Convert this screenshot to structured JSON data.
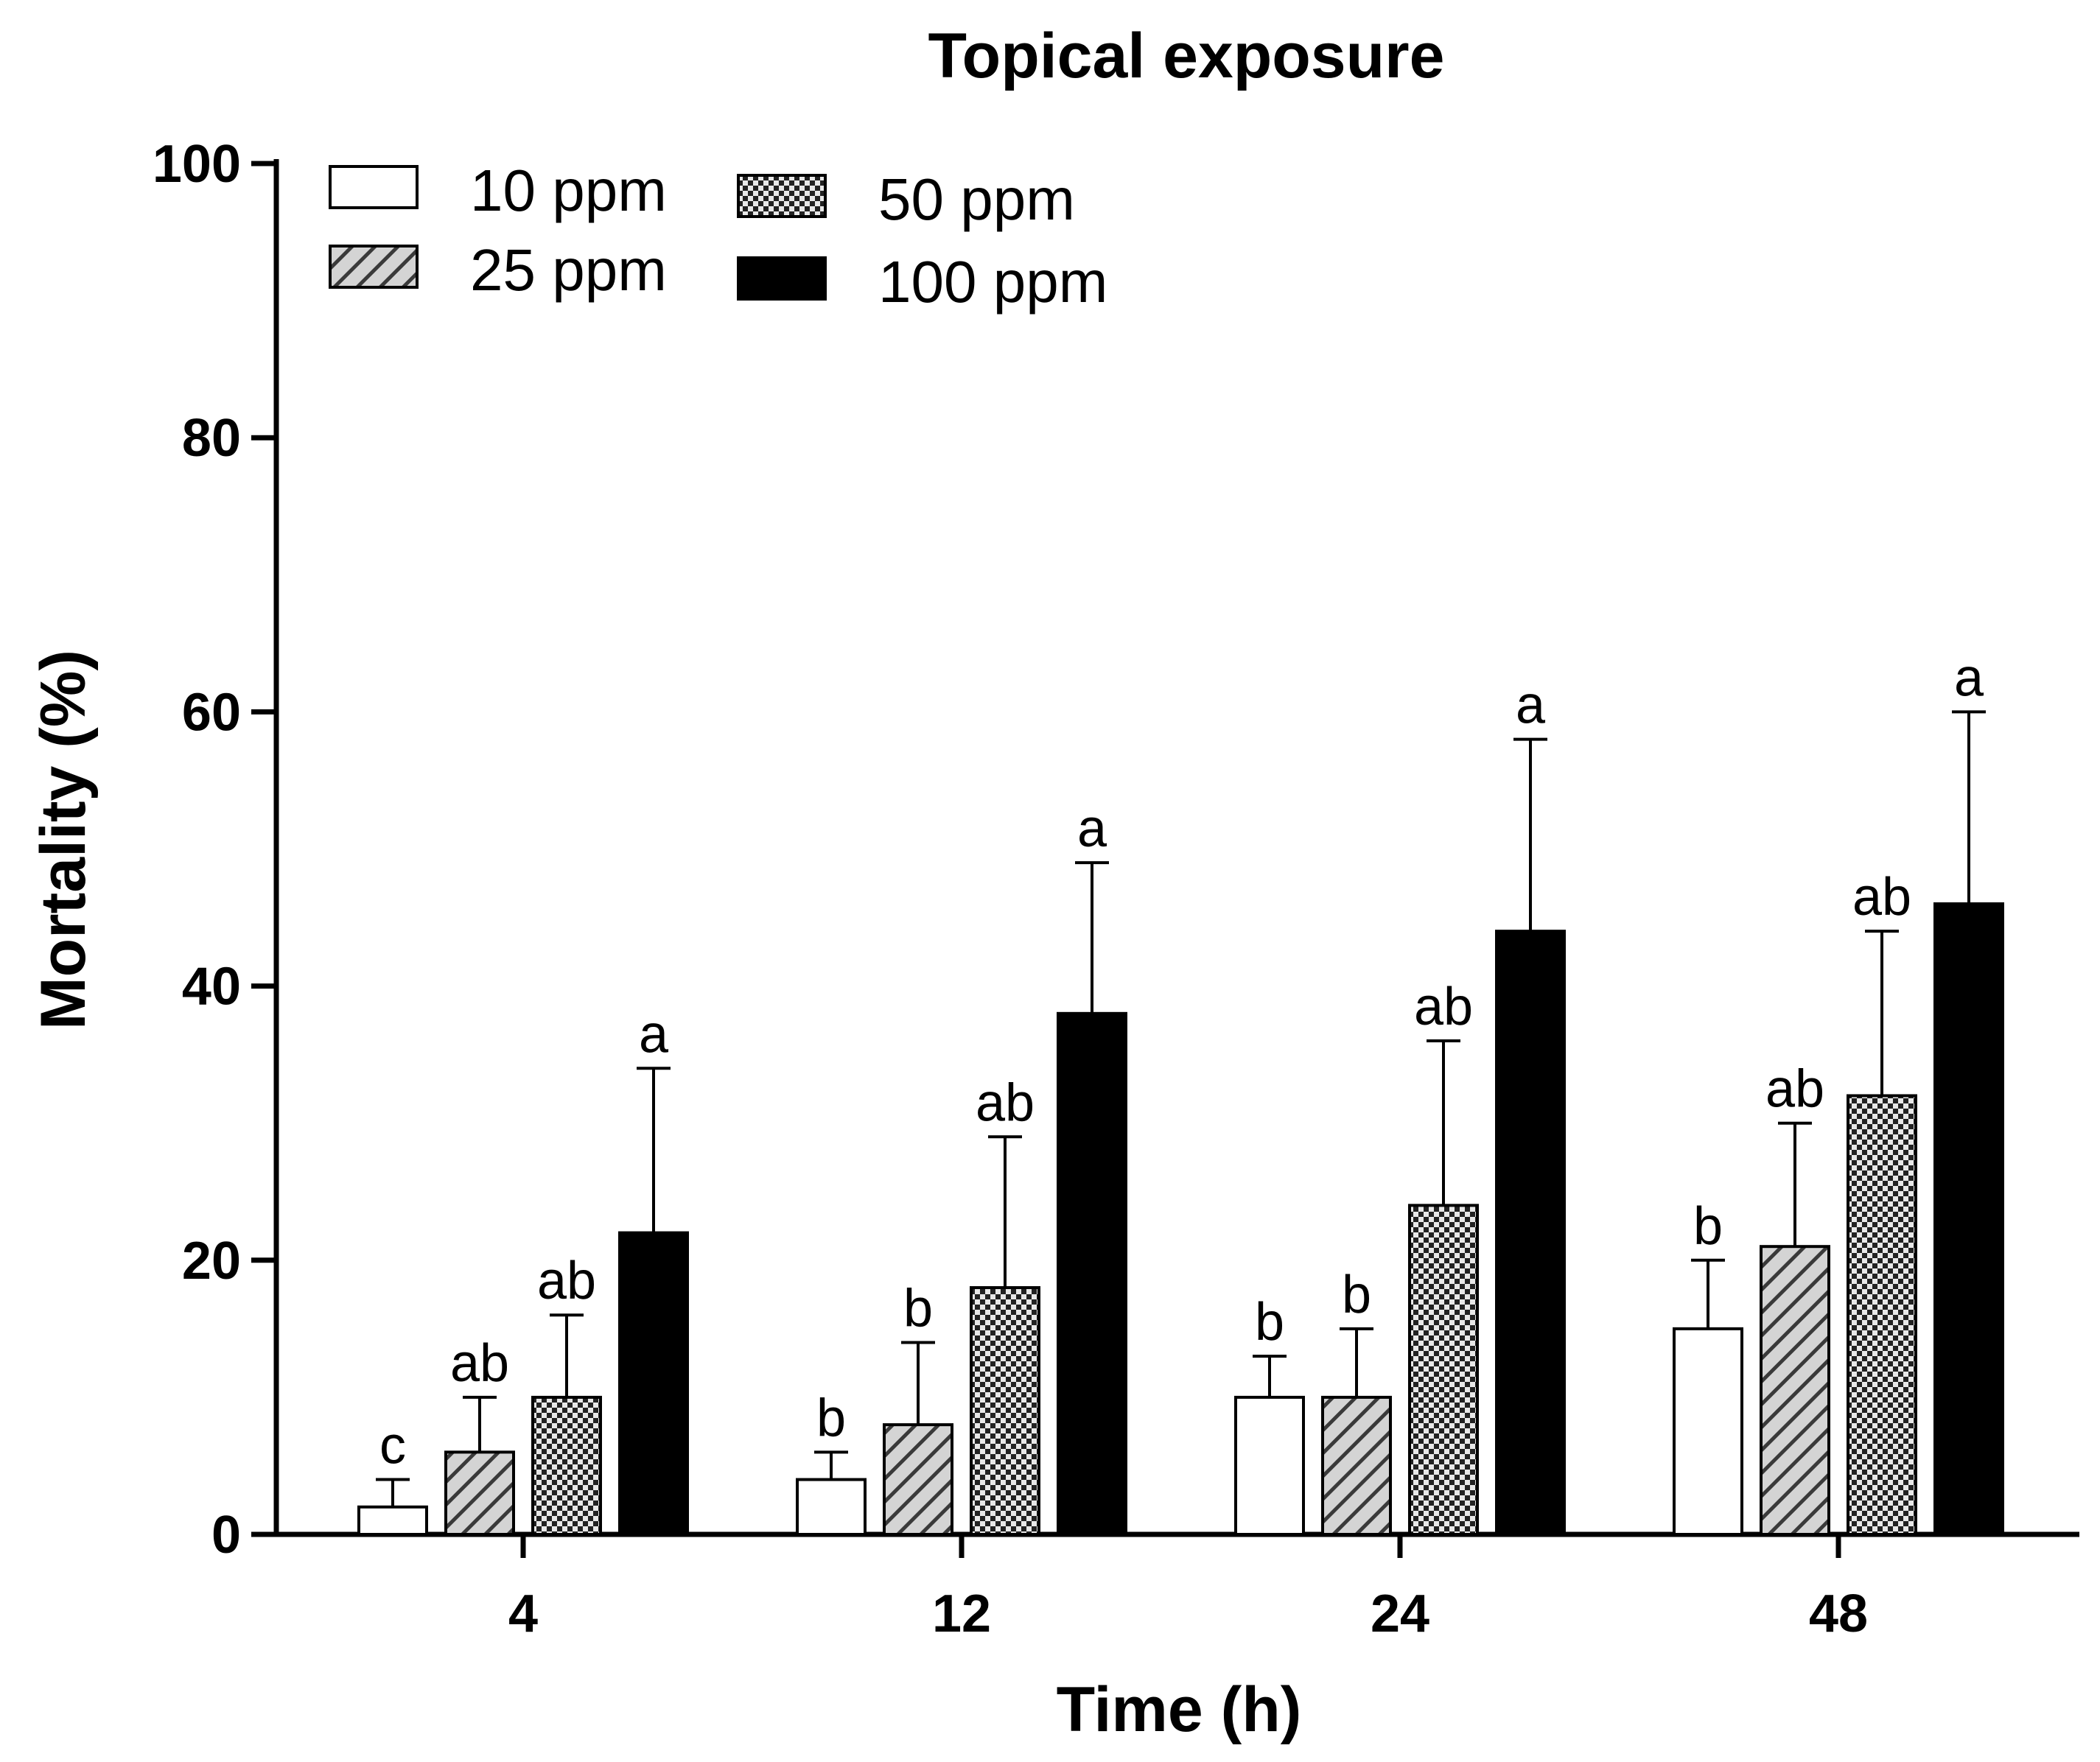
{
  "chart_data": {
    "type": "bar",
    "title": "Topical exposure",
    "xlabel": "Time (h)",
    "ylabel": "Mortality (%)",
    "ylim": [
      0,
      100
    ],
    "yticks": [
      "0",
      "20",
      "40",
      "60",
      "80",
      "100"
    ],
    "categories": [
      "4",
      "12",
      "24",
      "48"
    ],
    "legend_position": "top-left",
    "series": [
      {
        "name": "10 ppm",
        "pattern": "white",
        "values": [
          2,
          4,
          10,
          15
        ],
        "errors": [
          2,
          2,
          3,
          5
        ],
        "significance": [
          "c",
          "b",
          "b",
          "b"
        ]
      },
      {
        "name": "25 ppm",
        "pattern": "hatched",
        "values": [
          6,
          8,
          10,
          21
        ],
        "errors": [
          4,
          6,
          5,
          9
        ],
        "significance": [
          "ab",
          "b",
          "b",
          "ab"
        ]
      },
      {
        "name": "50 ppm",
        "pattern": "checkered",
        "values": [
          10,
          18,
          24,
          32
        ],
        "errors": [
          6,
          11,
          12,
          12
        ],
        "significance": [
          "ab",
          "ab",
          "ab",
          "ab"
        ]
      },
      {
        "name": "100 ppm",
        "pattern": "black",
        "values": [
          22,
          38,
          44,
          46
        ],
        "errors": [
          12,
          11,
          14,
          14
        ],
        "significance": [
          "a",
          "a",
          "a",
          "a"
        ]
      }
    ]
  },
  "colors": {
    "axis": "#000000",
    "bar_white": "#ffffff",
    "bar_hatch_bg": "#d4d4d4",
    "bar_check_dark": "#222222",
    "bar_check_light": "#e8e8e8",
    "bar_black": "#000000"
  }
}
